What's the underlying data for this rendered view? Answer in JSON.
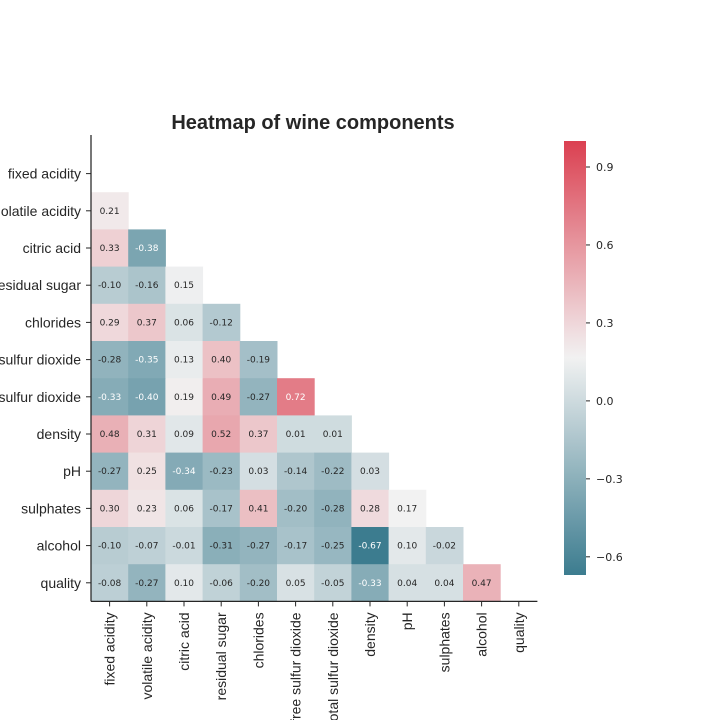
{
  "chart_data": {
    "type": "heatmap",
    "title": "Heatmap of wine components",
    "row_labels": [
      "fixed acidity",
      "volatile acidity",
      "citric acid",
      "residual sugar",
      "chlorides",
      "free sulfur dioxide",
      "total sulfur dioxide",
      "density",
      "pH",
      "sulphates",
      "alcohol",
      "quality"
    ],
    "row_labels_visible": [
      "fixed acidity",
      "olatile acidity",
      "citric acid",
      "esidual sugar",
      "chlorides",
      "sulfur dioxide",
      "sulfur dioxide",
      "density",
      "pH",
      "sulphates",
      "alcohol",
      "quality"
    ],
    "col_labels": [
      "fixed acidity",
      "volatile acidity",
      "citric acid",
      "residual sugar",
      "chlorides",
      "free sulfur dioxide",
      "total sulfur dioxide",
      "density",
      "pH",
      "sulphates",
      "alcohol",
      "quality"
    ],
    "mask": "upper triangle including diagonal",
    "values": [
      [],
      [
        0.21
      ],
      [
        0.33,
        -0.38
      ],
      [
        -0.1,
        -0.16,
        0.15
      ],
      [
        0.29,
        0.37,
        0.06,
        -0.12
      ],
      [
        -0.28,
        -0.35,
        0.13,
        0.4,
        -0.19
      ],
      [
        -0.33,
        -0.4,
        0.19,
        0.49,
        -0.27,
        0.72
      ],
      [
        0.48,
        0.31,
        0.09,
        0.52,
        0.37,
        0.01,
        0.01
      ],
      [
        -0.27,
        0.25,
        -0.34,
        -0.23,
        0.03,
        -0.14,
        -0.22,
        0.03
      ],
      [
        0.3,
        0.23,
        0.06,
        -0.17,
        0.41,
        -0.2,
        -0.28,
        0.28,
        0.17
      ],
      [
        -0.1,
        -0.07,
        -0.01,
        -0.31,
        -0.27,
        -0.17,
        -0.25,
        -0.67,
        0.1,
        -0.02
      ],
      [
        -0.08,
        -0.27,
        0.1,
        -0.06,
        -0.2,
        0.05,
        -0.05,
        -0.33,
        0.04,
        0.04,
        0.47
      ]
    ],
    "color_range": [
      -0.67,
      1.0
    ],
    "colormap": {
      "low": "#3c7c8f",
      "mid": "#f2f2f2",
      "high": "#db4051"
    },
    "colorbar_ticks": [
      0.9,
      0.6,
      0.3,
      0.0,
      -0.3,
      -0.6
    ],
    "colorbar_tick_labels": [
      "0.9",
      "0.6",
      "0.3",
      "0.0",
      "−0.3",
      "−0.6"
    ],
    "grid": false,
    "legend": "colorbar right"
  }
}
